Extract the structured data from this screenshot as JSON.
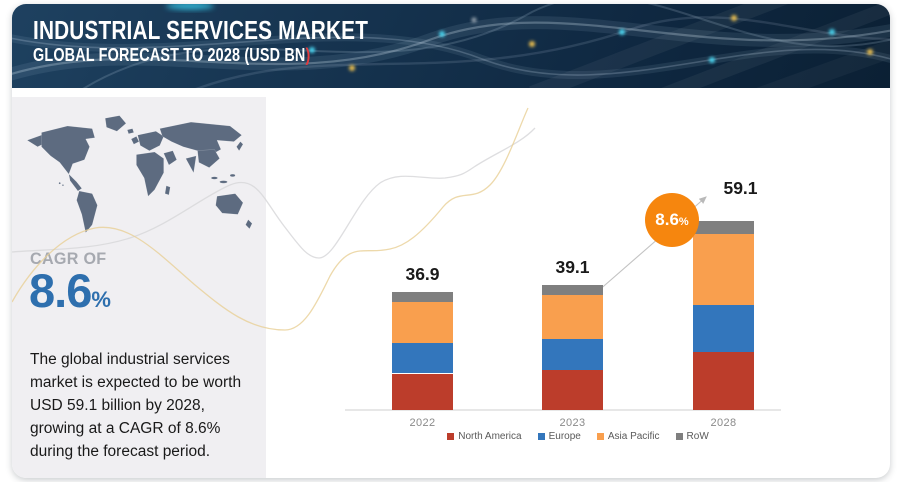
{
  "header": {
    "title": "INDUSTRIAL SERVICES MARKET",
    "subtitle": "GLOBAL FORECAST TO 2028 (USD BN",
    "subtitle_accent": ")"
  },
  "sidebar": {
    "cagr_label": "CAGR OF",
    "cagr_value": "8.6",
    "cagr_unit": "%",
    "description": "The global industrial services market is expected to be worth USD 59.1 billion by 2028, growing at a CAGR of 8.6% during the forecast period."
  },
  "badge": {
    "value": "8.6",
    "unit": "%"
  },
  "chart_data": {
    "type": "bar",
    "stacked": true,
    "categories": [
      "2022",
      "2023",
      "2028"
    ],
    "totals": [
      36.9,
      39.1,
      59.1
    ],
    "series": [
      {
        "name": "North America",
        "color": "#BC3D2B",
        "values": [
          11.4,
          12.5,
          18.2
        ]
      },
      {
        "name": "Europe",
        "color": "#3376BC",
        "values": [
          9.4,
          9.7,
          14.5
        ]
      },
      {
        "name": "Asia Pacific",
        "color": "#F99F4E",
        "values": [
          13.0,
          13.8,
          22.2
        ]
      },
      {
        "name": "RoW",
        "color": "#7F7F7F",
        "values": [
          3.1,
          3.1,
          4.2
        ]
      }
    ],
    "ylabel": "USD BN",
    "legend_position": "bottom",
    "grid": false,
    "cagr_annotation": "8.6%"
  },
  "colors": {
    "header_navy": "#14304A",
    "accent_red": "#E23B3E",
    "panel_gray": "#F0EFF2",
    "map_gray": "#5D6B80",
    "cagr_blue": "#2E6FAE",
    "badge_orange": "#F6860E",
    "wave_gold": "#E8CF96",
    "wave_gray": "#D8D8DA"
  }
}
